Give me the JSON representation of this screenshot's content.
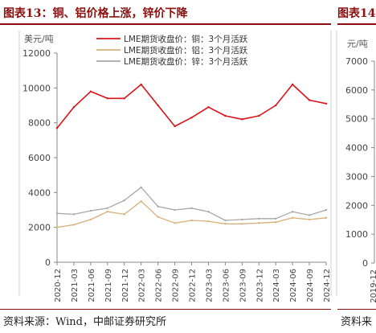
{
  "page": {
    "title": "图表13：铜、铝价格上涨，锌价下降",
    "title_right": "图表14",
    "source": "资料来源：Wind，中邮证券研究所",
    "source_right": "资料来"
  },
  "chart_data": [
    {
      "type": "line",
      "unit": "美元/吨",
      "ylim": [
        0,
        12000
      ],
      "yticks": [
        0,
        2000,
        4000,
        6000,
        8000,
        10000,
        12000
      ],
      "x": [
        "2020-12",
        "2021-03",
        "2021-06",
        "2021-09",
        "2021-12",
        "2022-03",
        "2022-06",
        "2022-09",
        "2022-12",
        "2023-03",
        "2023-06",
        "2023-09",
        "2023-12",
        "2024-03",
        "2024-06",
        "2024-09",
        "2024-12"
      ],
      "legend_position": "top",
      "series": [
        {
          "name": "LME期货收盘价：铜：3个月活跃",
          "color": "#d8141c",
          "values": [
            7700,
            8900,
            9800,
            9400,
            9400,
            10200,
            9000,
            7800,
            8300,
            8900,
            8400,
            8200,
            8400,
            9000,
            10200,
            9300,
            9100
          ]
        },
        {
          "name": "LME期货收盘价：铝：3个月活跃",
          "color": "#d9b07a",
          "values": [
            2000,
            2150,
            2450,
            2900,
            2750,
            3500,
            2600,
            2250,
            2400,
            2350,
            2200,
            2200,
            2250,
            2300,
            2550,
            2450,
            2550
          ]
        },
        {
          "name": "LME期货收盘价：锌：3个月活跃",
          "color": "#a8a8a8",
          "values": [
            2800,
            2750,
            2950,
            3100,
            3550,
            4300,
            3200,
            3000,
            3100,
            2900,
            2400,
            2450,
            2500,
            2500,
            2900,
            2700,
            3000
          ]
        }
      ]
    },
    {
      "type": "line",
      "unit": "元/吨",
      "ylim": [
        0,
        7000
      ],
      "yticks": [
        0,
        1000,
        2000,
        3000,
        4000,
        5000,
        6000,
        7000
      ],
      "x": [
        "2019-12"
      ]
    }
  ]
}
